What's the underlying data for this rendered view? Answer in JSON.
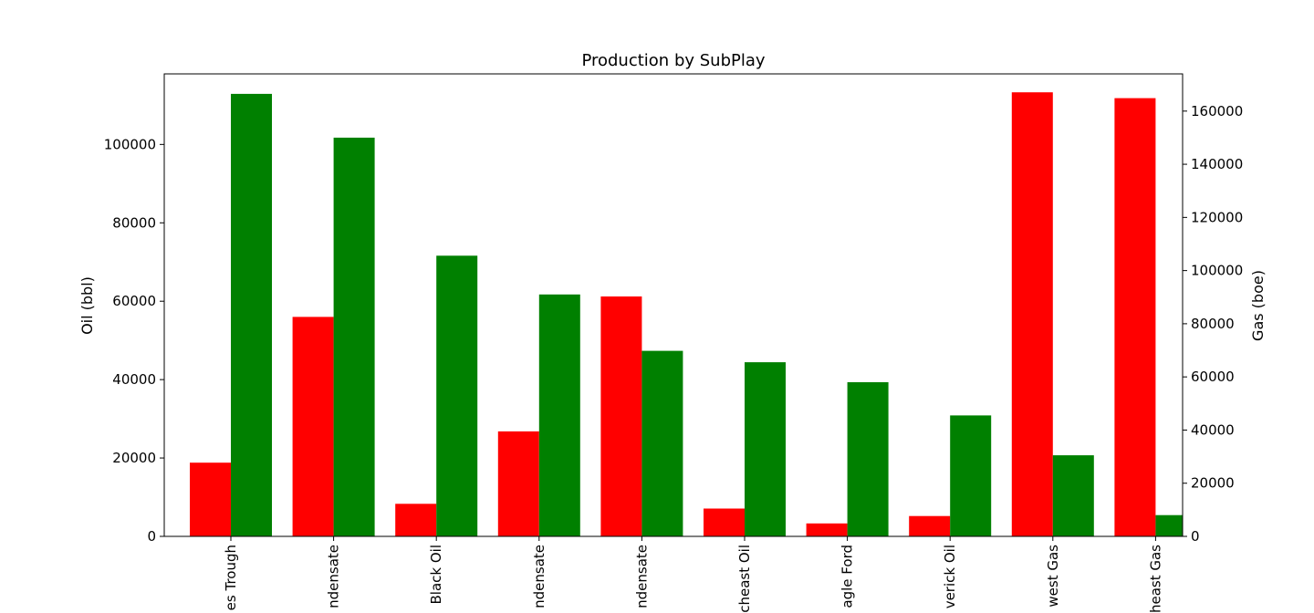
{
  "chart_data": {
    "type": "bar",
    "title": "Production by SubPlay",
    "ylabel": "Oil (bbl)",
    "y2label": "Gas (boe)",
    "ylim": [
      0,
      118000
    ],
    "y2lim": [
      0,
      174000
    ],
    "yticks": [
      0,
      20000,
      40000,
      60000,
      80000,
      100000
    ],
    "y2ticks": [
      0,
      20000,
      40000,
      60000,
      80000,
      100000,
      120000,
      140000,
      160000
    ],
    "categories": [
      "es Trough",
      "ndensate",
      "Black Oil",
      "ndensate",
      "ndensate",
      "cheast Oil",
      "agle Ford",
      "verick Oil",
      "west Gas",
      "heast Gas"
    ],
    "series": [
      {
        "axis": "left",
        "color": "#ff0000",
        "values": [
          18800,
          56000,
          8300,
          26800,
          61200,
          7100,
          3300,
          5200,
          113300,
          111800
        ]
      },
      {
        "axis": "right",
        "color": "#008000",
        "values": [
          166500,
          150000,
          105600,
          91000,
          69800,
          65500,
          58000,
          45500,
          30500,
          8000
        ]
      }
    ],
    "grid": false,
    "legend": "none"
  }
}
